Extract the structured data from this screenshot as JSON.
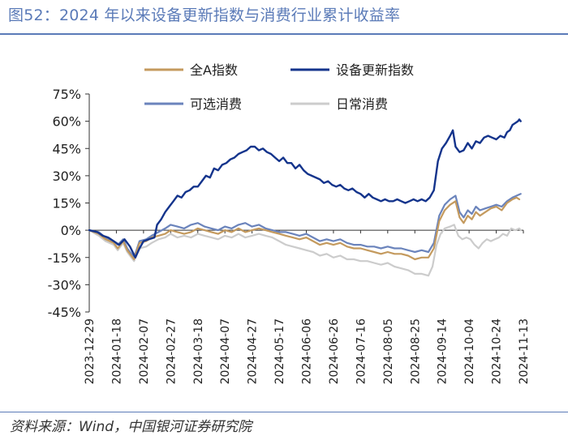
{
  "header": {
    "title": "图52：2024 年以来设备更新指数与消费行业累计收益率"
  },
  "footer": {
    "source": "资料来源：Wind，中国银河证券研究院"
  },
  "chart_data": {
    "type": "line",
    "title": "图52：2024 年以来设备更新指数与消费行业累计收益率",
    "xlabel": "",
    "ylabel": "",
    "ylim": [
      -45,
      75
    ],
    "yticks": [
      75,
      60,
      45,
      30,
      15,
      0,
      -15,
      -30,
      -45
    ],
    "ytick_labels": [
      "75%",
      "60%",
      "45%",
      "30%",
      "15%",
      "0%",
      "-15%",
      "-30%",
      "-45%"
    ],
    "x_tick_labels": [
      "2023-12-29",
      "2024-01-18",
      "2024-02-07",
      "2024-02-27",
      "2024-03-18",
      "2024-04-07",
      "2024-04-27",
      "2024-05-17",
      "2024-06-06",
      "2024-06-26",
      "2024-07-16",
      "2024-08-05",
      "2024-08-25",
      "2024-09-14",
      "2024-10-04",
      "2024-10-24",
      "2024-11-13"
    ],
    "x_range": [
      0,
      320
    ],
    "legend_position": "top",
    "series": [
      {
        "name": "全A指数",
        "color": "#c49a5e",
        "points": [
          [
            0,
            0
          ],
          [
            7,
            -2
          ],
          [
            12,
            -5
          ],
          [
            18,
            -7
          ],
          [
            21,
            -10
          ],
          [
            25,
            -6
          ],
          [
            28,
            -11
          ],
          [
            33,
            -16
          ],
          [
            37,
            -7
          ],
          [
            42,
            -6
          ],
          [
            46,
            -4
          ],
          [
            51,
            -3
          ],
          [
            56,
            -2
          ],
          [
            60,
            0
          ],
          [
            65,
            -1
          ],
          [
            70,
            -2
          ],
          [
            75,
            -1
          ],
          [
            80,
            1
          ],
          [
            85,
            0
          ],
          [
            90,
            -1
          ],
          [
            95,
            -2
          ],
          [
            100,
            0
          ],
          [
            105,
            -1
          ],
          [
            110,
            1
          ],
          [
            115,
            -1
          ],
          [
            120,
            0
          ],
          [
            125,
            1
          ],
          [
            130,
            0
          ],
          [
            135,
            -1
          ],
          [
            140,
            -2
          ],
          [
            145,
            -3
          ],
          [
            150,
            -4
          ],
          [
            155,
            -5
          ],
          [
            160,
            -4
          ],
          [
            165,
            -6
          ],
          [
            170,
            -8
          ],
          [
            175,
            -7
          ],
          [
            180,
            -8
          ],
          [
            185,
            -7
          ],
          [
            190,
            -9
          ],
          [
            195,
            -10
          ],
          [
            200,
            -10
          ],
          [
            205,
            -11
          ],
          [
            210,
            -12
          ],
          [
            215,
            -13
          ],
          [
            220,
            -12
          ],
          [
            225,
            -13
          ],
          [
            230,
            -13
          ],
          [
            235,
            -14
          ],
          [
            240,
            -16
          ],
          [
            245,
            -15
          ],
          [
            250,
            -15
          ],
          [
            254,
            -10
          ],
          [
            258,
            5
          ],
          [
            262,
            11
          ],
          [
            266,
            14
          ],
          [
            270,
            16
          ],
          [
            273,
            7
          ],
          [
            276,
            4
          ],
          [
            279,
            8
          ],
          [
            282,
            6
          ],
          [
            285,
            10
          ],
          [
            288,
            8
          ],
          [
            292,
            10
          ],
          [
            296,
            12
          ],
          [
            300,
            13
          ],
          [
            304,
            11
          ],
          [
            308,
            15
          ],
          [
            312,
            17
          ],
          [
            315,
            18
          ],
          [
            317,
            17
          ]
        ]
      },
      {
        "name": "设备更新指数",
        "color": "#14348c",
        "points": [
          [
            0,
            0
          ],
          [
            6,
            -1
          ],
          [
            10,
            -3
          ],
          [
            14,
            -4
          ],
          [
            18,
            -6
          ],
          [
            22,
            -8
          ],
          [
            26,
            -5
          ],
          [
            30,
            -9
          ],
          [
            34,
            -15
          ],
          [
            37,
            -10
          ],
          [
            40,
            -6
          ],
          [
            44,
            -5
          ],
          [
            48,
            -4
          ],
          [
            50,
            3
          ],
          [
            53,
            6
          ],
          [
            56,
            10
          ],
          [
            59,
            13
          ],
          [
            62,
            16
          ],
          [
            65,
            19
          ],
          [
            68,
            18
          ],
          [
            71,
            21
          ],
          [
            74,
            22
          ],
          [
            77,
            24
          ],
          [
            80,
            24
          ],
          [
            83,
            27
          ],
          [
            86,
            30
          ],
          [
            89,
            29
          ],
          [
            92,
            34
          ],
          [
            95,
            33
          ],
          [
            98,
            36
          ],
          [
            101,
            37
          ],
          [
            104,
            39
          ],
          [
            107,
            40
          ],
          [
            110,
            42
          ],
          [
            113,
            43
          ],
          [
            116,
            44
          ],
          [
            119,
            46
          ],
          [
            122,
            46
          ],
          [
            125,
            44
          ],
          [
            128,
            45
          ],
          [
            131,
            43
          ],
          [
            134,
            42
          ],
          [
            137,
            40
          ],
          [
            140,
            38
          ],
          [
            143,
            40
          ],
          [
            146,
            37
          ],
          [
            149,
            37
          ],
          [
            152,
            34
          ],
          [
            155,
            36
          ],
          [
            158,
            33
          ],
          [
            161,
            31
          ],
          [
            164,
            30
          ],
          [
            167,
            29
          ],
          [
            170,
            28
          ],
          [
            173,
            26
          ],
          [
            176,
            27
          ],
          [
            179,
            25
          ],
          [
            182,
            24
          ],
          [
            185,
            25
          ],
          [
            188,
            23
          ],
          [
            191,
            22
          ],
          [
            194,
            23
          ],
          [
            197,
            21
          ],
          [
            200,
            20
          ],
          [
            203,
            18
          ],
          [
            206,
            20
          ],
          [
            209,
            18
          ],
          [
            212,
            17
          ],
          [
            215,
            16
          ],
          [
            218,
            17
          ],
          [
            221,
            16
          ],
          [
            224,
            16
          ],
          [
            227,
            17
          ],
          [
            230,
            16
          ],
          [
            233,
            15
          ],
          [
            236,
            16
          ],
          [
            239,
            17
          ],
          [
            242,
            16
          ],
          [
            245,
            17
          ],
          [
            248,
            16
          ],
          [
            251,
            18
          ],
          [
            254,
            22
          ],
          [
            257,
            38
          ],
          [
            260,
            45
          ],
          [
            263,
            48
          ],
          [
            266,
            52
          ],
          [
            268,
            55
          ],
          [
            270,
            46
          ],
          [
            273,
            43
          ],
          [
            276,
            44
          ],
          [
            279,
            48
          ],
          [
            282,
            45
          ],
          [
            285,
            49
          ],
          [
            288,
            48
          ],
          [
            291,
            51
          ],
          [
            294,
            52
          ],
          [
            297,
            51
          ],
          [
            300,
            50
          ],
          [
            303,
            52
          ],
          [
            306,
            51
          ],
          [
            308,
            54
          ],
          [
            310,
            55
          ],
          [
            312,
            58
          ],
          [
            314,
            59
          ],
          [
            316,
            60
          ],
          [
            317,
            61
          ],
          [
            318,
            60
          ]
        ]
      },
      {
        "name": "可选消费",
        "color": "#6b84bc",
        "points": [
          [
            0,
            0
          ],
          [
            7,
            -1
          ],
          [
            12,
            -4
          ],
          [
            18,
            -6
          ],
          [
            21,
            -8
          ],
          [
            25,
            -5
          ],
          [
            28,
            -10
          ],
          [
            33,
            -15
          ],
          [
            37,
            -6
          ],
          [
            42,
            -5
          ],
          [
            46,
            -3
          ],
          [
            51,
            -1
          ],
          [
            56,
            1
          ],
          [
            60,
            3
          ],
          [
            65,
            2
          ],
          [
            70,
            1
          ],
          [
            75,
            3
          ],
          [
            80,
            4
          ],
          [
            85,
            2
          ],
          [
            90,
            1
          ],
          [
            95,
            0
          ],
          [
            100,
            2
          ],
          [
            105,
            1
          ],
          [
            110,
            3
          ],
          [
            115,
            4
          ],
          [
            120,
            2
          ],
          [
            125,
            3
          ],
          [
            130,
            1
          ],
          [
            135,
            0
          ],
          [
            140,
            -1
          ],
          [
            145,
            -1
          ],
          [
            150,
            -2
          ],
          [
            155,
            -3
          ],
          [
            160,
            -2
          ],
          [
            165,
            -4
          ],
          [
            170,
            -6
          ],
          [
            175,
            -5
          ],
          [
            180,
            -6
          ],
          [
            185,
            -5
          ],
          [
            190,
            -7
          ],
          [
            195,
            -8
          ],
          [
            200,
            -8
          ],
          [
            205,
            -9
          ],
          [
            210,
            -9
          ],
          [
            215,
            -10
          ],
          [
            220,
            -9
          ],
          [
            225,
            -10
          ],
          [
            230,
            -10
          ],
          [
            235,
            -11
          ],
          [
            240,
            -12
          ],
          [
            245,
            -11
          ],
          [
            250,
            -12
          ],
          [
            254,
            -7
          ],
          [
            258,
            8
          ],
          [
            262,
            14
          ],
          [
            266,
            17
          ],
          [
            270,
            19
          ],
          [
            273,
            10
          ],
          [
            276,
            7
          ],
          [
            279,
            11
          ],
          [
            282,
            9
          ],
          [
            285,
            13
          ],
          [
            288,
            11
          ],
          [
            292,
            12
          ],
          [
            296,
            13
          ],
          [
            300,
            14
          ],
          [
            304,
            13
          ],
          [
            308,
            16
          ],
          [
            312,
            18
          ],
          [
            315,
            19
          ],
          [
            318,
            20
          ]
        ]
      },
      {
        "name": "日常消费",
        "color": "#cccccc",
        "points": [
          [
            0,
            0
          ],
          [
            7,
            -3
          ],
          [
            12,
            -6
          ],
          [
            18,
            -8
          ],
          [
            21,
            -11
          ],
          [
            25,
            -7
          ],
          [
            28,
            -12
          ],
          [
            33,
            -17
          ],
          [
            37,
            -10
          ],
          [
            42,
            -9
          ],
          [
            46,
            -7
          ],
          [
            51,
            -5
          ],
          [
            56,
            -4
          ],
          [
            60,
            -2
          ],
          [
            65,
            -4
          ],
          [
            70,
            -3
          ],
          [
            75,
            -4
          ],
          [
            80,
            -2
          ],
          [
            85,
            -3
          ],
          [
            90,
            -4
          ],
          [
            95,
            -5
          ],
          [
            100,
            -3
          ],
          [
            105,
            -4
          ],
          [
            110,
            -2
          ],
          [
            115,
            -4
          ],
          [
            120,
            -3
          ],
          [
            125,
            -2
          ],
          [
            130,
            -3
          ],
          [
            135,
            -4
          ],
          [
            140,
            -6
          ],
          [
            145,
            -8
          ],
          [
            150,
            -9
          ],
          [
            155,
            -10
          ],
          [
            160,
            -11
          ],
          [
            165,
            -12
          ],
          [
            170,
            -14
          ],
          [
            175,
            -13
          ],
          [
            180,
            -15
          ],
          [
            185,
            -14
          ],
          [
            190,
            -16
          ],
          [
            195,
            -16
          ],
          [
            200,
            -17
          ],
          [
            205,
            -17
          ],
          [
            210,
            -18
          ],
          [
            215,
            -19
          ],
          [
            220,
            -18
          ],
          [
            225,
            -20
          ],
          [
            230,
            -21
          ],
          [
            235,
            -22
          ],
          [
            240,
            -24
          ],
          [
            245,
            -24
          ],
          [
            250,
            -25
          ],
          [
            253,
            -20
          ],
          [
            256,
            -8
          ],
          [
            259,
            -2
          ],
          [
            262,
            1
          ],
          [
            266,
            2
          ],
          [
            269,
            3
          ],
          [
            272,
            -3
          ],
          [
            275,
            -5
          ],
          [
            278,
            -4
          ],
          [
            281,
            -5
          ],
          [
            284,
            -8
          ],
          [
            287,
            -10
          ],
          [
            290,
            -7
          ],
          [
            293,
            -5
          ],
          [
            296,
            -6
          ],
          [
            299,
            -5
          ],
          [
            302,
            -4
          ],
          [
            305,
            -2
          ],
          [
            308,
            -3
          ],
          [
            311,
            1
          ],
          [
            314,
            0
          ],
          [
            317,
            1
          ],
          [
            318,
            0
          ]
        ]
      }
    ]
  }
}
